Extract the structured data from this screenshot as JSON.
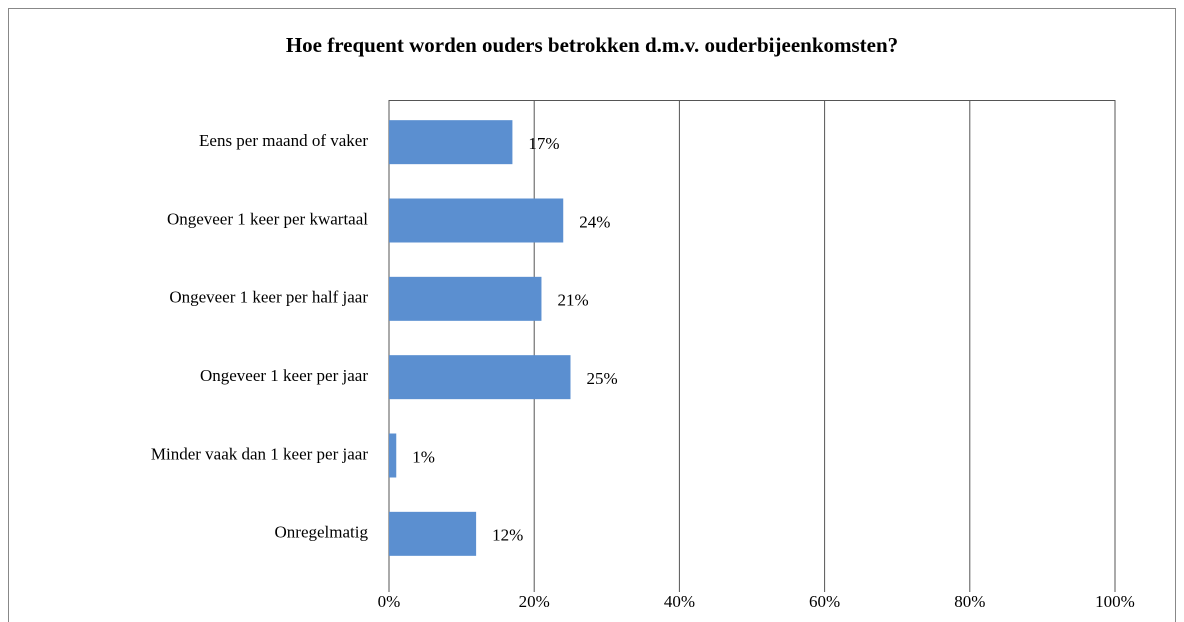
{
  "chart_data": {
    "type": "barh",
    "title": "Hoe frequent worden ouders betrokken d.m.v. ouderbijeenkomsten?",
    "categories": [
      "Eens per maand of vaker",
      "Ongeveer 1 keer per kwartaal",
      "Ongeveer 1 keer per half jaar",
      "Ongeveer 1 keer per jaar",
      "Minder vaak dan 1 keer per jaar",
      "Onregelmatig"
    ],
    "values": [
      17,
      24,
      21,
      25,
      1,
      12
    ],
    "value_labels": [
      "17%",
      "24%",
      "21%",
      "25%",
      "1%",
      "12%"
    ],
    "color": "#5b8fd0",
    "xlim": [
      0,
      100
    ],
    "xticks": [
      {
        "value": 0,
        "label": "0%"
      },
      {
        "value": 20,
        "label": "20%"
      },
      {
        "value": 40,
        "label": "40%"
      },
      {
        "value": 60,
        "label": "60%"
      },
      {
        "value": 80,
        "label": "80%"
      },
      {
        "value": 100,
        "label": "100%"
      }
    ],
    "grid": true
  }
}
